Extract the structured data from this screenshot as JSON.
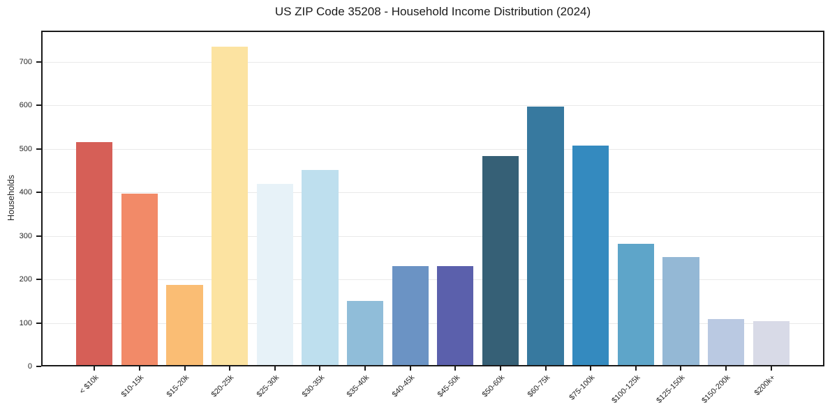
{
  "chart_data": {
    "type": "bar",
    "title": "US ZIP Code 35208 - Household Income Distribution (2024)",
    "ylabel": "Households",
    "xlabel": "",
    "categories": [
      "< $10k",
      "$10-15k",
      "$15-20k",
      "$20-25k",
      "$25-30k",
      "$30-35k",
      "$35-40k",
      "$40-45k",
      "$45-50k",
      "$50-60k",
      "$60-75k",
      "$75-100k",
      "$100-125k",
      "$125-150k",
      "$150-200k",
      "$200k+"
    ],
    "values": [
      516,
      397,
      187,
      735,
      420,
      452,
      151,
      230,
      230,
      484,
      598,
      507,
      282,
      252,
      109,
      104
    ],
    "bar_colors": [
      "#d65f57",
      "#f28a68",
      "#fabd74",
      "#fce3a1",
      "#e7f2f8",
      "#bedfee",
      "#90bdd9",
      "#6b93c4",
      "#5b60ac",
      "#366076",
      "#37799f",
      "#348abf",
      "#5ea5c9",
      "#94b8d5",
      "#bac9e2",
      "#d8dae7"
    ],
    "yticks": [
      0,
      100,
      200,
      300,
      400,
      500,
      600,
      700
    ],
    "ylim": [
      0,
      772
    ],
    "grid": true,
    "legend": false,
    "x_tick_rotation": 45,
    "background_color": "#ffffff",
    "spine_color": "#1a1a1a",
    "grid_color": "#e9e9e9",
    "tick_label_color": "#262626"
  }
}
